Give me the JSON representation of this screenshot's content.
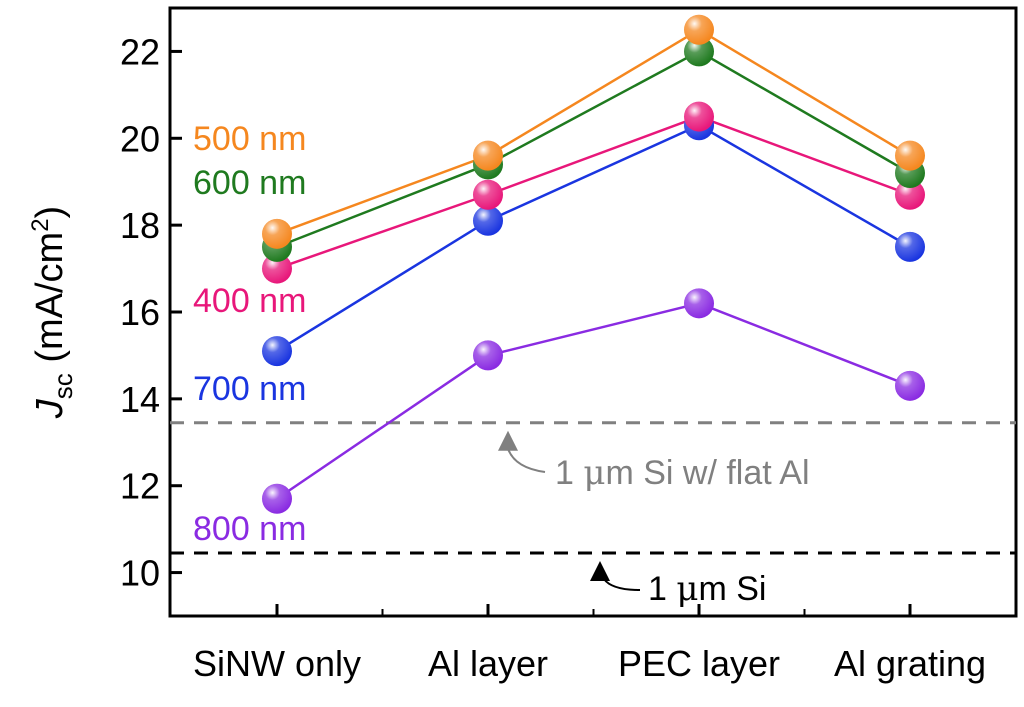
{
  "chart_data": {
    "type": "line",
    "title": "",
    "xlabel": "",
    "ylabel": {
      "main": "J",
      "sub": "sc",
      "unit_open": " (mA/cm",
      "sup": "2",
      "unit_close": ")"
    },
    "categories": [
      "SiNW only",
      "Al layer",
      "PEC layer",
      "Al grating"
    ],
    "ylim": [
      9,
      23
    ],
    "yticks": [
      10,
      12,
      14,
      16,
      18,
      20,
      22
    ],
    "grid": false,
    "series": [
      {
        "name": "500 nm",
        "label": "500 nm",
        "color": "#f5871f",
        "values": [
          17.8,
          19.6,
          22.5,
          19.6
        ]
      },
      {
        "name": "600 nm",
        "label": "600 nm",
        "color": "#1f7a1f",
        "values": [
          17.5,
          19.4,
          22.0,
          19.2
        ]
      },
      {
        "name": "400 nm",
        "label": "400 nm",
        "color": "#e8177a",
        "values": [
          17.0,
          18.7,
          20.5,
          18.7
        ]
      },
      {
        "name": "700 nm",
        "label": "700 nm",
        "color": "#1a35e0",
        "values": [
          15.1,
          18.1,
          20.3,
          17.5
        ]
      },
      {
        "name": "800 nm",
        "label": "800 nm",
        "color": "#8a2be2",
        "values": [
          11.7,
          15.0,
          16.2,
          14.3
        ]
      }
    ],
    "reference_lines": [
      {
        "name": "flat-al",
        "label_prefix": "1 ",
        "label_mu": "μ",
        "label_suffix": "m Si w/ flat Al",
        "value": 13.45,
        "color": "#808080"
      },
      {
        "name": "bare-si",
        "label_prefix": "1 ",
        "label_mu": "μ",
        "label_suffix": "m Si",
        "value": 10.45,
        "color": "#000000"
      }
    ]
  }
}
